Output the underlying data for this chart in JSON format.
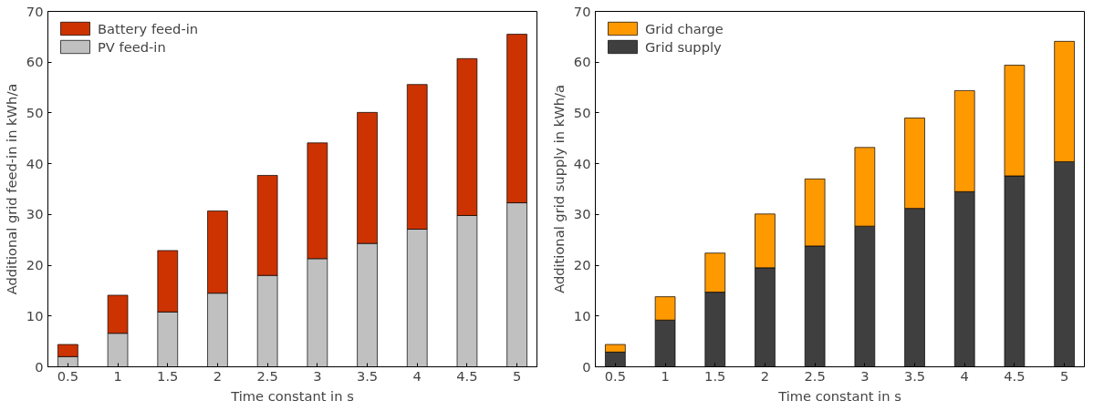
{
  "chart_data": [
    {
      "type": "bar",
      "stacked": true,
      "xlabel": "Time constant in s",
      "ylabel": "Additional grid feed-in in kWh/a",
      "x": [
        0.5,
        1,
        1.5,
        2,
        2.5,
        3,
        3.5,
        4,
        4.5,
        5
      ],
      "xlim": [
        0.3,
        5.2
      ],
      "xticks": [
        0.5,
        1,
        1.5,
        2,
        2.5,
        3,
        3.5,
        4,
        4.5,
        5
      ],
      "ylim": [
        0,
        70
      ],
      "yticks": [
        0,
        10,
        20,
        30,
        40,
        50,
        60,
        70
      ],
      "grid": false,
      "legend": "top left",
      "series": [
        {
          "name": "PV feed-in",
          "color": "#c0c0c0",
          "values": [
            2.0,
            6.6,
            10.8,
            14.5,
            18.0,
            21.3,
            24.3,
            27.1,
            29.8,
            32.3
          ]
        },
        {
          "name": "Battery feed-in",
          "color": "#cc3300",
          "values": [
            2.4,
            7.5,
            12.1,
            16.2,
            19.7,
            22.8,
            25.8,
            28.5,
            30.9,
            33.2
          ]
        }
      ]
    },
    {
      "type": "bar",
      "stacked": true,
      "xlabel": "Time constant in s",
      "ylabel": "Additional grid supply in kWh/a",
      "x": [
        0.5,
        1,
        1.5,
        2,
        2.5,
        3,
        3.5,
        4,
        4.5,
        5
      ],
      "xlim": [
        0.3,
        5.2
      ],
      "xticks": [
        0.5,
        1,
        1.5,
        2,
        2.5,
        3,
        3.5,
        4,
        4.5,
        5
      ],
      "ylim": [
        0,
        70
      ],
      "yticks": [
        0,
        10,
        20,
        30,
        40,
        50,
        60,
        70
      ],
      "grid": false,
      "legend": "top left",
      "series": [
        {
          "name": "Grid supply",
          "color": "#3f3f3f",
          "values": [
            2.9,
            9.2,
            14.7,
            19.5,
            23.8,
            27.7,
            31.2,
            34.5,
            37.6,
            40.4
          ]
        },
        {
          "name": "Grid charge",
          "color": "#ff9900",
          "values": [
            1.5,
            4.6,
            7.7,
            10.6,
            13.2,
            15.5,
            17.8,
            19.9,
            21.8,
            23.7
          ]
        }
      ]
    }
  ]
}
